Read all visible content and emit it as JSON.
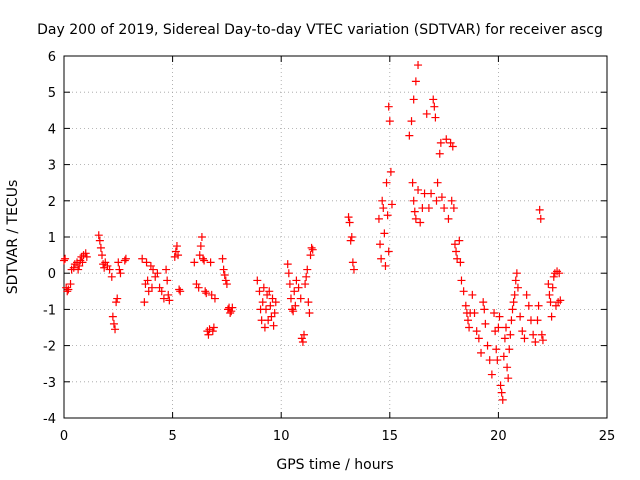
{
  "chart_data": {
    "type": "scatter",
    "title": "Day 200 of 2019, Sidereal Day-to-day VTEC variation (SDTVAR) for receiver ascg",
    "xlabel": "GPS time / hours",
    "ylabel": "SDTVAR / TECUs",
    "xlim": [
      0,
      25
    ],
    "ylim": [
      -4,
      6
    ],
    "x_ticks": [
      "0",
      "5",
      "10",
      "15",
      "20",
      "25"
    ],
    "y_ticks": [
      "-4",
      "-3",
      "-2",
      "-1",
      "0",
      "1",
      "2",
      "3",
      "4",
      "5",
      "6"
    ],
    "grid": true,
    "marker": "+",
    "color": "#ff0000",
    "series": [
      {
        "name": "SDTVAR",
        "points": [
          [
            0.0,
            0.35
          ],
          [
            0.05,
            0.4
          ],
          [
            0.1,
            -0.4
          ],
          [
            0.15,
            -0.5
          ],
          [
            0.2,
            -0.45
          ],
          [
            0.3,
            -0.3
          ],
          [
            0.35,
            0.1
          ],
          [
            0.45,
            0.15
          ],
          [
            0.5,
            0.25
          ],
          [
            0.6,
            0.3
          ],
          [
            0.65,
            0.1
          ],
          [
            0.7,
            0.2
          ],
          [
            0.75,
            0.35
          ],
          [
            0.8,
            0.45
          ],
          [
            0.85,
            0.3
          ],
          [
            0.9,
            0.5
          ],
          [
            1.0,
            0.55
          ],
          [
            1.05,
            0.45
          ],
          [
            1.6,
            1.05
          ],
          [
            1.65,
            0.9
          ],
          [
            1.7,
            0.7
          ],
          [
            1.75,
            0.5
          ],
          [
            1.8,
            0.25
          ],
          [
            1.85,
            0.15
          ],
          [
            1.9,
            0.3
          ],
          [
            2.0,
            0.2
          ],
          [
            2.1,
            0.1
          ],
          [
            2.2,
            -0.1
          ],
          [
            2.25,
            -1.2
          ],
          [
            2.3,
            -1.4
          ],
          [
            2.35,
            -1.55
          ],
          [
            2.4,
            -0.8
          ],
          [
            2.45,
            -0.7
          ],
          [
            2.5,
            0.3
          ],
          [
            2.55,
            0.1
          ],
          [
            2.6,
            0.0
          ],
          [
            2.8,
            0.35
          ],
          [
            2.85,
            0.4
          ],
          [
            3.6,
            0.4
          ],
          [
            3.7,
            -0.8
          ],
          [
            3.75,
            -0.3
          ],
          [
            3.8,
            0.3
          ],
          [
            3.85,
            -0.2
          ],
          [
            3.9,
            -0.5
          ],
          [
            4.0,
            0.2
          ],
          [
            4.05,
            -0.4
          ],
          [
            4.1,
            0.1
          ],
          [
            4.2,
            -0.1
          ],
          [
            4.3,
            0.0
          ],
          [
            4.4,
            -0.4
          ],
          [
            4.5,
            -0.5
          ],
          [
            4.6,
            -0.7
          ],
          [
            4.7,
            0.1
          ],
          [
            4.75,
            -0.2
          ],
          [
            4.8,
            -0.6
          ],
          [
            4.85,
            -0.75
          ],
          [
            5.1,
            0.45
          ],
          [
            5.15,
            0.6
          ],
          [
            5.2,
            0.75
          ],
          [
            5.25,
            0.5
          ],
          [
            5.3,
            -0.45
          ],
          [
            5.35,
            -0.5
          ],
          [
            6.0,
            0.3
          ],
          [
            6.1,
            -0.3
          ],
          [
            6.2,
            -0.4
          ],
          [
            6.25,
            0.5
          ],
          [
            6.3,
            0.75
          ],
          [
            6.35,
            1.0
          ],
          [
            6.4,
            0.4
          ],
          [
            6.45,
            0.35
          ],
          [
            6.5,
            -0.5
          ],
          [
            6.55,
            -0.55
          ],
          [
            6.6,
            -1.6
          ],
          [
            6.65,
            -1.7
          ],
          [
            6.7,
            -1.55
          ],
          [
            6.75,
            0.3
          ],
          [
            6.8,
            -0.6
          ],
          [
            6.85,
            -1.6
          ],
          [
            6.9,
            -1.5
          ],
          [
            6.95,
            -0.7
          ],
          [
            7.3,
            0.4
          ],
          [
            7.35,
            0.1
          ],
          [
            7.4,
            -0.05
          ],
          [
            7.45,
            -0.2
          ],
          [
            7.5,
            -0.3
          ],
          [
            7.55,
            -1.0
          ],
          [
            7.6,
            -0.95
          ],
          [
            7.65,
            -1.1
          ],
          [
            7.7,
            -1.05
          ],
          [
            7.75,
            -0.95
          ],
          [
            8.9,
            -0.2
          ],
          [
            9.0,
            -0.5
          ],
          [
            9.05,
            -1.0
          ],
          [
            9.1,
            -1.3
          ],
          [
            9.15,
            -0.8
          ],
          [
            9.2,
            -0.4
          ],
          [
            9.25,
            -1.5
          ],
          [
            9.3,
            -1.0
          ],
          [
            9.35,
            -0.6
          ],
          [
            9.4,
            -1.3
          ],
          [
            9.45,
            -0.5
          ],
          [
            9.5,
            -0.9
          ],
          [
            9.55,
            -1.2
          ],
          [
            9.6,
            -0.7
          ],
          [
            9.65,
            -1.45
          ],
          [
            9.7,
            -1.1
          ],
          [
            9.75,
            -0.8
          ],
          [
            10.3,
            0.25
          ],
          [
            10.35,
            0.0
          ],
          [
            10.4,
            -0.3
          ],
          [
            10.45,
            -0.7
          ],
          [
            10.5,
            -1.0
          ],
          [
            10.55,
            -1.05
          ],
          [
            10.6,
            -0.5
          ],
          [
            10.65,
            -0.9
          ],
          [
            10.7,
            -0.2
          ],
          [
            10.8,
            -0.4
          ],
          [
            10.9,
            -0.7
          ],
          [
            10.95,
            -1.8
          ],
          [
            11.0,
            -1.9
          ],
          [
            11.05,
            -1.7
          ],
          [
            11.1,
            -0.3
          ],
          [
            11.15,
            -0.1
          ],
          [
            11.2,
            0.1
          ],
          [
            11.25,
            -0.8
          ],
          [
            11.3,
            -1.1
          ],
          [
            11.35,
            0.5
          ],
          [
            11.4,
            0.7
          ],
          [
            11.45,
            0.65
          ],
          [
            13.1,
            1.55
          ],
          [
            13.15,
            1.4
          ],
          [
            13.2,
            0.9
          ],
          [
            13.25,
            1.0
          ],
          [
            13.3,
            0.3
          ],
          [
            13.35,
            0.1
          ],
          [
            14.5,
            1.5
          ],
          [
            14.55,
            0.8
          ],
          [
            14.6,
            0.4
          ],
          [
            14.65,
            2.0
          ],
          [
            14.7,
            1.8
          ],
          [
            14.75,
            1.1
          ],
          [
            14.8,
            0.2
          ],
          [
            14.85,
            2.5
          ],
          [
            14.9,
            1.6
          ],
          [
            14.95,
            0.6
          ],
          [
            14.95,
            4.6
          ],
          [
            15.0,
            4.2
          ],
          [
            15.05,
            2.8
          ],
          [
            15.1,
            1.9
          ],
          [
            15.9,
            3.8
          ],
          [
            16.0,
            4.2
          ],
          [
            16.1,
            4.8
          ],
          [
            16.2,
            5.3
          ],
          [
            16.3,
            5.75
          ],
          [
            16.05,
            2.5
          ],
          [
            16.1,
            2.0
          ],
          [
            16.15,
            1.7
          ],
          [
            16.2,
            1.5
          ],
          [
            16.3,
            2.3
          ],
          [
            16.4,
            1.4
          ],
          [
            16.5,
            1.8
          ],
          [
            16.6,
            2.2
          ],
          [
            16.7,
            4.4
          ],
          [
            16.8,
            1.8
          ],
          [
            16.9,
            2.2
          ],
          [
            17.0,
            4.8
          ],
          [
            17.05,
            4.6
          ],
          [
            17.1,
            4.3
          ],
          [
            17.15,
            2.0
          ],
          [
            17.2,
            2.5
          ],
          [
            17.3,
            3.3
          ],
          [
            17.35,
            3.6
          ],
          [
            17.4,
            2.1
          ],
          [
            17.5,
            1.8
          ],
          [
            17.6,
            3.7
          ],
          [
            17.7,
            1.5
          ],
          [
            17.8,
            3.6
          ],
          [
            17.85,
            2.0
          ],
          [
            17.9,
            3.5
          ],
          [
            17.95,
            1.8
          ],
          [
            18.0,
            0.8
          ],
          [
            18.05,
            0.6
          ],
          [
            18.1,
            0.4
          ],
          [
            18.2,
            0.9
          ],
          [
            18.25,
            0.3
          ],
          [
            18.3,
            -0.2
          ],
          [
            18.4,
            -0.5
          ],
          [
            18.5,
            -0.9
          ],
          [
            18.55,
            -1.1
          ],
          [
            18.6,
            -1.3
          ],
          [
            18.65,
            -1.5
          ],
          [
            18.7,
            -1.1
          ],
          [
            18.8,
            -0.6
          ],
          [
            18.9,
            -1.1
          ],
          [
            19.0,
            -1.6
          ],
          [
            19.1,
            -1.8
          ],
          [
            19.2,
            -2.2
          ],
          [
            19.3,
            -0.8
          ],
          [
            19.35,
            -1.0
          ],
          [
            19.4,
            -1.4
          ],
          [
            19.5,
            -2.0
          ],
          [
            19.6,
            -2.4
          ],
          [
            19.7,
            -2.8
          ],
          [
            19.8,
            -1.1
          ],
          [
            19.85,
            -1.6
          ],
          [
            19.9,
            -2.1
          ],
          [
            19.95,
            -2.4
          ],
          [
            20.0,
            -1.5
          ],
          [
            20.05,
            -1.2
          ],
          [
            20.1,
            -3.1
          ],
          [
            20.15,
            -3.3
          ],
          [
            20.2,
            -3.5
          ],
          [
            20.25,
            -2.3
          ],
          [
            20.3,
            -1.8
          ],
          [
            20.35,
            -1.5
          ],
          [
            20.4,
            -2.6
          ],
          [
            20.45,
            -2.9
          ],
          [
            20.5,
            -2.1
          ],
          [
            20.55,
            -1.7
          ],
          [
            20.6,
            -1.3
          ],
          [
            20.65,
            -1.0
          ],
          [
            20.7,
            -0.8
          ],
          [
            20.75,
            -0.6
          ],
          [
            20.8,
            -0.2
          ],
          [
            20.85,
            0.0
          ],
          [
            20.9,
            -0.4
          ],
          [
            21.0,
            -1.2
          ],
          [
            21.1,
            -1.6
          ],
          [
            21.2,
            -1.8
          ],
          [
            21.3,
            -0.6
          ],
          [
            21.4,
            -0.9
          ],
          [
            21.5,
            -1.3
          ],
          [
            21.6,
            -1.7
          ],
          [
            21.7,
            -1.9
          ],
          [
            21.8,
            -1.3
          ],
          [
            21.85,
            -0.9
          ],
          [
            21.9,
            1.75
          ],
          [
            21.95,
            1.5
          ],
          [
            22.0,
            -1.7
          ],
          [
            22.05,
            -1.85
          ],
          [
            22.3,
            -0.3
          ],
          [
            22.35,
            -0.6
          ],
          [
            22.4,
            -0.8
          ],
          [
            22.45,
            -1.2
          ],
          [
            22.5,
            -0.4
          ],
          [
            22.55,
            -0.1
          ],
          [
            22.6,
            0.0
          ],
          [
            22.65,
            -0.9
          ],
          [
            22.7,
            0.05
          ],
          [
            22.75,
            -0.8
          ],
          [
            22.8,
            0.0
          ],
          [
            22.85,
            -0.75
          ]
        ]
      }
    ]
  }
}
